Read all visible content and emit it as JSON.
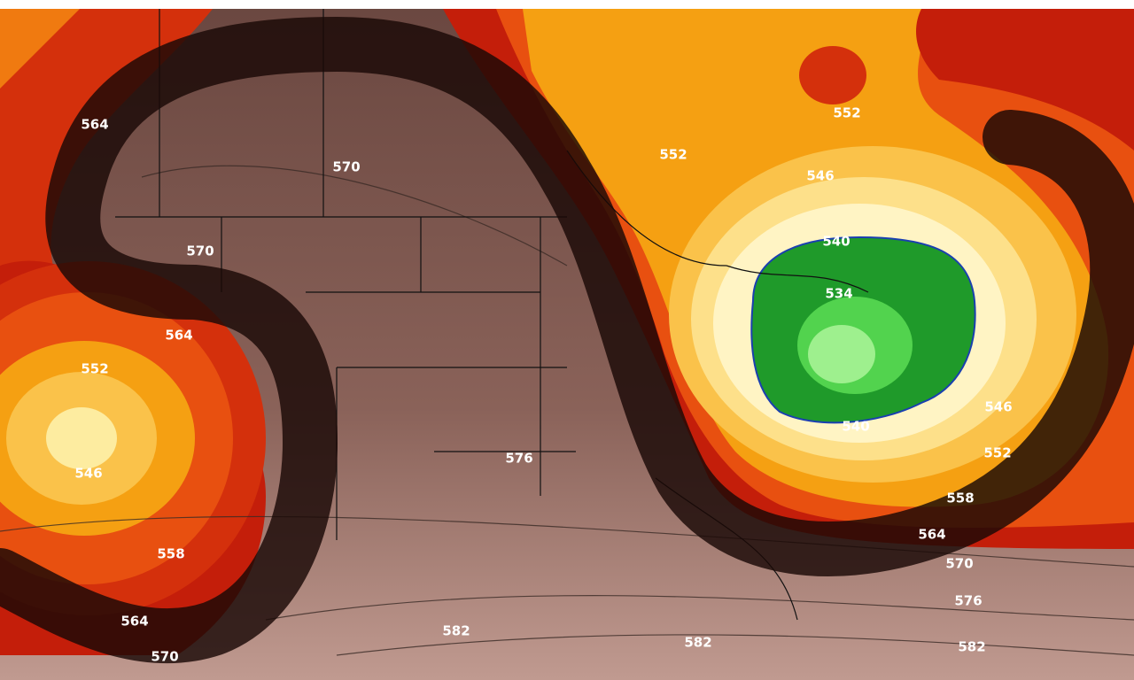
{
  "map": {
    "contour_labels": [
      564,
      570,
      570,
      564,
      552,
      546,
      558,
      564,
      570,
      576,
      582,
      582,
      552,
      552,
      546,
      540,
      534,
      540,
      546,
      552,
      558,
      564,
      570,
      576,
      582
    ]
  }
}
